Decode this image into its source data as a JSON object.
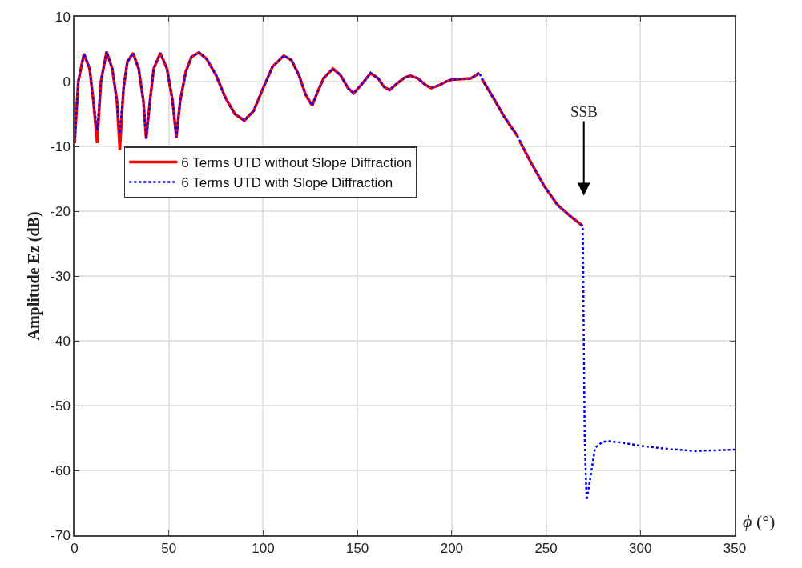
{
  "chart_data": {
    "type": "line",
    "xlabel": "ϕ (°)",
    "ylabel": "Amplitude Ez (dB)",
    "xlim": [
      0,
      350
    ],
    "xticks": [
      0,
      50,
      100,
      150,
      200,
      250,
      300,
      350
    ],
    "ylim": [
      -70,
      10
    ],
    "yticks": [
      -70,
      -60,
      -50,
      -40,
      -30,
      -20,
      -10,
      0,
      10
    ],
    "grid": true,
    "legend": "left",
    "annotations": [
      "SSB"
    ],
    "series": [
      {
        "name": "6 Terms UTD without Slope Diffraction",
        "color": "#ff0000",
        "line_style": "solid",
        "x": [
          0,
          2,
          5,
          8,
          10,
          12,
          14,
          17,
          20,
          22.5,
          24,
          26,
          28,
          31,
          34,
          36.5,
          38,
          40,
          42,
          45.5,
          49,
          52,
          54,
          56,
          59,
          62,
          66,
          70,
          75,
          80,
          85,
          90,
          95,
          100,
          105,
          111,
          115,
          119,
          122.5,
          126,
          129,
          132,
          137,
          141,
          145,
          148,
          152,
          157,
          161,
          164,
          167,
          171,
          175,
          178,
          182,
          186,
          189,
          193,
          197,
          200,
          205,
          210,
          213,
          214.5,
          215.2,
          216,
          222,
          228,
          235,
          235.5,
          236,
          242,
          249,
          256,
          263,
          269.5
        ],
        "values": [
          -9.5,
          0,
          4.3,
          2,
          -3,
          -9.5,
          0,
          4.6,
          2,
          -3,
          -10.5,
          -1,
          3,
          4.4,
          2,
          -3,
          -8.8,
          -3,
          2,
          4.4,
          2,
          -3,
          -8.6,
          -3,
          1.5,
          3.8,
          4.5,
          3.5,
          1,
          -2.5,
          -5,
          -6,
          -4.5,
          -1,
          2.3,
          4,
          3.3,
          1,
          -2,
          -3.7,
          -1.5,
          0.5,
          2,
          1,
          -1,
          -1.8,
          -0.5,
          1.3,
          0.5,
          -0.8,
          -1.3,
          -0.3,
          0.6,
          0.9,
          0.5,
          -0.5,
          -1,
          -0.6,
          0,
          0.3,
          0.4,
          0.5,
          1,
          1.4,
          null,
          0.4,
          -2.5,
          -5.5,
          -8.5,
          null,
          -9.2,
          -12.5,
          -16.1,
          -19,
          -20.8,
          -22.3
        ]
      },
      {
        "name": "6 Terms UTD with Slope Diffraction",
        "color": "#0000ff",
        "line_style": "dotted",
        "x": [
          0,
          2,
          5,
          8,
          10,
          12,
          14,
          17,
          20,
          22.5,
          24,
          26,
          28,
          31,
          34,
          36.5,
          38,
          40,
          42,
          45.5,
          49,
          52,
          54,
          56,
          59,
          62,
          66,
          70,
          75,
          80,
          85,
          90,
          95,
          100,
          105,
          111,
          115,
          119,
          122.5,
          126,
          129,
          132,
          137,
          141,
          145,
          148,
          152,
          157,
          161,
          164,
          167,
          171,
          175,
          178,
          182,
          186,
          189,
          193,
          197,
          200,
          205,
          210,
          213,
          214.5,
          216,
          222,
          228,
          235,
          242,
          249,
          256,
          263,
          269.5,
          270,
          270.5,
          271.5,
          273,
          276,
          280,
          283,
          290,
          300,
          315,
          329,
          340,
          350
        ],
        "values": [
          -9.5,
          0,
          4.3,
          2,
          -3,
          -7.5,
          0,
          4.6,
          2,
          -3,
          -8,
          -1,
          3,
          4.4,
          2,
          -3,
          -8.8,
          -3,
          2,
          4.4,
          2,
          -3,
          -8.6,
          -3,
          1.5,
          3.8,
          4.5,
          3.5,
          1,
          -2.5,
          -5,
          -6,
          -4.5,
          -1,
          2.3,
          4,
          3.3,
          1,
          -2,
          -3.7,
          -1.5,
          0.5,
          2,
          1,
          -1,
          -1.8,
          -0.5,
          1.3,
          0.5,
          -0.8,
          -1.3,
          -0.3,
          0.6,
          0.9,
          0.5,
          -0.5,
          -1,
          -0.6,
          0,
          0.3,
          0.4,
          0.5,
          1,
          1.4,
          0.4,
          -2.5,
          -5.5,
          -8.5,
          -12.5,
          -16.1,
          -19,
          -20.8,
          -22.3,
          -40,
          -55,
          -64.6,
          -62,
          -56.5,
          -55.6,
          -55.5,
          -55.7,
          -56.2,
          -56.7,
          -57,
          -56.9,
          -56.8
        ]
      }
    ]
  }
}
